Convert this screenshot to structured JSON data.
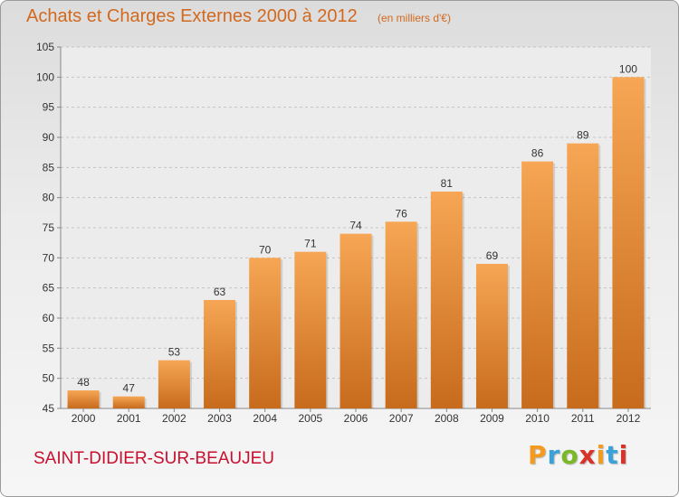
{
  "title": "Achats et Charges Externes 2000 à 2012",
  "subtitle": "(en milliers d'€)",
  "commune": "SAINT-DIDIER-SUR-BEAUJEU",
  "logo": {
    "letters": [
      "P",
      "r",
      "o",
      "x",
      "i",
      "t",
      "i"
    ],
    "colors": [
      "#f39a1f",
      "#3aa2d8",
      "#7ab828",
      "#d8322b",
      "#f39a1f",
      "#3aa2d8",
      "#d8322b"
    ]
  },
  "colors": {
    "accent": "#d2691e",
    "bar_top": "#f6a654",
    "bar_bottom": "#c76b1c",
    "commune": "#c8102e"
  },
  "chart_data": {
    "type": "bar",
    "categories": [
      "2000",
      "2001",
      "2002",
      "2003",
      "2004",
      "2005",
      "2006",
      "2007",
      "2008",
      "2009",
      "2010",
      "2011",
      "2012"
    ],
    "values": [
      48,
      47,
      53,
      63,
      70,
      71,
      74,
      76,
      81,
      69,
      86,
      89,
      100
    ],
    "ylim": [
      45,
      105
    ],
    "yticks": [
      45,
      50,
      55,
      60,
      65,
      70,
      75,
      80,
      85,
      90,
      95,
      100,
      105
    ],
    "grid": "horizontal dashed",
    "data_labels": true
  }
}
